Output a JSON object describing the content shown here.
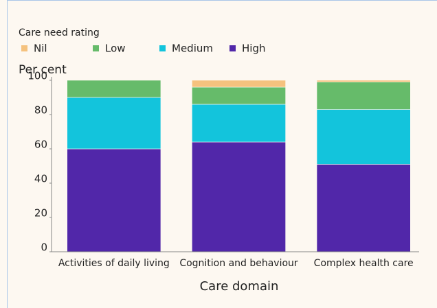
{
  "chart_data": {
    "type": "stacked_bar",
    "legend_title": "Care need rating",
    "y_label": "Per cent",
    "x_label": "Care domain",
    "categories": [
      "Activities of daily living",
      "Cognition and behaviour",
      "Complex health care"
    ],
    "series": [
      {
        "name": "Nil",
        "color": "#f5c27e",
        "values": [
          0,
          4,
          1
        ]
      },
      {
        "name": "Low",
        "color": "#66bb6a",
        "values": [
          10,
          10,
          16
        ]
      },
      {
        "name": "Medium",
        "color": "#13c4dc",
        "values": [
          30,
          22,
          32
        ]
      },
      {
        "name": "High",
        "color": "#5127a9",
        "values": [
          60,
          64,
          51
        ]
      }
    ],
    "ylim": [
      0,
      100
    ],
    "yticks": [
      0,
      20,
      40,
      60,
      80,
      100
    ],
    "grid": false,
    "legend": "top-left"
  }
}
